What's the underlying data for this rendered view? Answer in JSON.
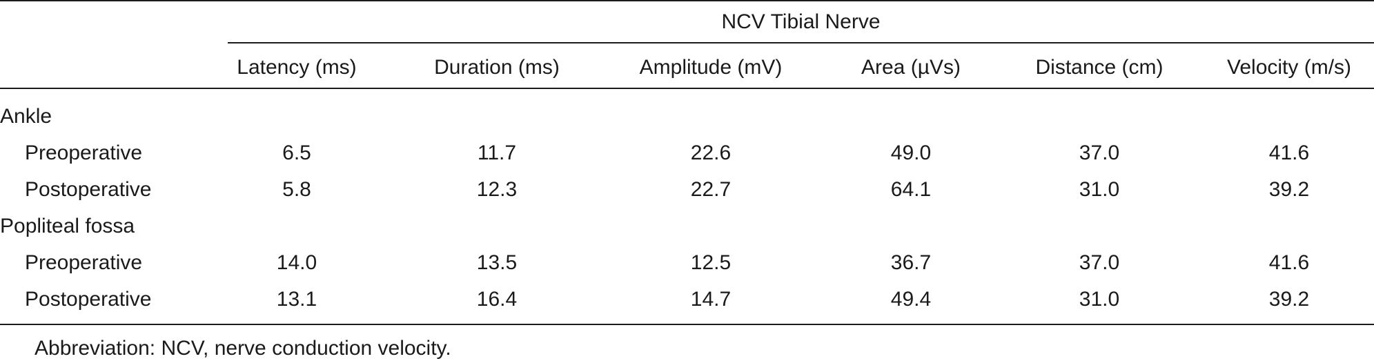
{
  "table": {
    "group_header": "NCV Tibial Nerve",
    "columns": [
      "Latency (ms)",
      "Duration (ms)",
      "Amplitude (mV)",
      "Area (µVs)",
      "Distance (cm)",
      "Velocity (m/s)"
    ],
    "sections": [
      {
        "label": "Ankle",
        "rows": [
          {
            "label": "Preoperative",
            "values": [
              "6.5",
              "11.7",
              "22.6",
              "49.0",
              "37.0",
              "41.6"
            ]
          },
          {
            "label": "Postoperative",
            "values": [
              "5.8",
              "12.3",
              "22.7",
              "64.1",
              "31.0",
              "39.2"
            ]
          }
        ]
      },
      {
        "label": "Popliteal fossa",
        "rows": [
          {
            "label": "Preoperative",
            "values": [
              "14.0",
              "13.5",
              "12.5",
              "36.7",
              "37.0",
              "41.6"
            ]
          },
          {
            "label": "Postoperative",
            "values": [
              "13.1",
              "16.4",
              "14.7",
              "49.4",
              "31.0",
              "39.2"
            ]
          }
        ]
      }
    ],
    "footnote": "Abbreviation: NCV, nerve conduction velocity."
  }
}
